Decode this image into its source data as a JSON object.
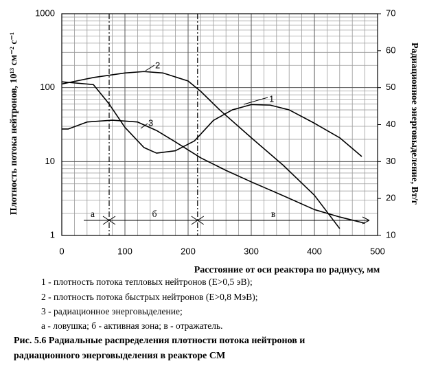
{
  "chart_data": {
    "type": "line",
    "y_label": "Плотность потока нейтронов, 10¹³ см⁻² с⁻¹",
    "y2_label": "Радиационное энерговыделение, Вт/г",
    "x_label": "Расстояние от оси реактора по радиусу, мм",
    "xlim": [
      0,
      500
    ],
    "xticks": [
      0,
      100,
      200,
      300,
      400,
      500
    ],
    "ylim": [
      1,
      1000
    ],
    "yticks": [
      1,
      10,
      100,
      1000
    ],
    "log_y": true,
    "y2lim": [
      10,
      70
    ],
    "y2ticks": [
      10,
      20,
      30,
      40,
      50,
      60,
      70
    ],
    "grid": true,
    "x_minor_grid": [
      20,
      40,
      60,
      80,
      120,
      140,
      160,
      180,
      220,
      240,
      260,
      280,
      320,
      340,
      360,
      380,
      420,
      440,
      460,
      480
    ],
    "y_minor_grid": [
      2,
      3,
      4,
      5,
      6,
      7,
      8,
      9,
      20,
      30,
      40,
      50,
      60,
      70,
      80,
      90,
      200,
      300,
      400,
      500,
      600,
      700,
      800,
      900
    ],
    "zone_boundaries": [
      75,
      215
    ],
    "zone_labels": [
      "а",
      "б",
      "в"
    ],
    "series": [
      {
        "name": "1",
        "color": "#000000",
        "x": [
          0,
          50,
          75,
          100,
          130,
          150,
          180,
          210,
          240,
          270,
          300,
          330,
          360,
          400,
          440,
          475
        ],
        "values": [
          120,
          110,
          60,
          29,
          15.5,
          13,
          14,
          19,
          36,
          50,
          59,
          58,
          50,
          33,
          21,
          11.7
        ]
      },
      {
        "name": "2",
        "color": "#000000",
        "x": [
          0,
          50,
          100,
          130,
          160,
          200,
          220,
          250,
          300,
          350,
          400,
          440
        ],
        "values": [
          112,
          137,
          158,
          165,
          158,
          123,
          89,
          50,
          21,
          9,
          3.5,
          1.24
        ]
      },
      {
        "name": "3",
        "color": "#000000",
        "axis": "y2",
        "x": [
          0,
          10,
          40,
          80,
          120,
          150,
          180,
          220,
          260,
          300,
          350,
          400,
          440,
          480
        ],
        "values": [
          38.8,
          38.8,
          40.7,
          41.2,
          40.7,
          38.4,
          35.3,
          31,
          27.6,
          24.5,
          20.8,
          17,
          15,
          13.3
        ]
      }
    ],
    "notes": [
      "1 - плотность потока тепловых нейтронов (E>0,5 эВ);",
      "2 - плотность потока быстрых  нейтронов (E>0,8 МэВ);",
      "3 - радиационное энерговыделение;",
      "а - ловушка; б - активная зона; в - отражатель."
    ],
    "caption": [
      "Рис. 5.6  Радиальные распределения плотности потока нейтронов и",
      "радиационного энерговыделения в реакторе СМ"
    ]
  }
}
